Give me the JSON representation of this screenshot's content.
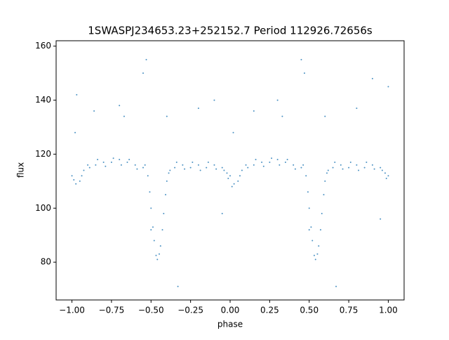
{
  "chart_data": {
    "type": "scatter",
    "title": "1SWASPJ234653.23+252152.7 Period 112926.72656s",
    "x_label": "phase",
    "y_label": "flux",
    "color": "#1f77b4",
    "xlim": [
      -1.1,
      1.1
    ],
    "ylim": [
      66,
      162
    ],
    "xticks": [
      {
        "value": -1,
        "label": "−1.00"
      },
      {
        "value": -0.75,
        "label": "−0.75"
      },
      {
        "value": -0.5,
        "label": "−0.50"
      },
      {
        "value": -0.25,
        "label": "−0.25"
      },
      {
        "value": 0,
        "label": "0.00"
      },
      {
        "value": 0.25,
        "label": "0.25"
      },
      {
        "value": 0.5,
        "label": "0.50"
      },
      {
        "value": 0.75,
        "label": "0.75"
      },
      {
        "value": 1,
        "label": "1.00"
      }
    ],
    "yticks": [
      80,
      100,
      120,
      140,
      160
    ],
    "x": [
      -1.0,
      -0.975,
      -0.95,
      -0.925,
      -0.9,
      -0.85,
      -0.8,
      -0.75,
      -0.7,
      -0.65,
      -0.6,
      -0.55,
      -0.52,
      -0.5,
      -0.48,
      -0.46,
      -0.44,
      -0.42,
      -0.4,
      -0.38,
      -0.35,
      -0.3,
      -0.25,
      -0.2,
      -0.15,
      -0.1,
      -0.05,
      -0.02,
      0.0,
      0.025,
      0.05,
      0.075,
      0.1,
      0.15,
      0.2,
      0.25,
      0.3,
      0.35,
      0.4,
      0.45,
      0.48,
      0.5,
      0.52,
      0.54,
      0.56,
      0.58,
      0.6,
      0.62,
      0.65,
      0.7,
      0.75,
      0.8,
      0.85,
      0.9,
      0.95,
      0.98,
      1.0,
      -0.988,
      -0.938,
      -0.888,
      -0.838,
      -0.788,
      -0.738,
      -0.688,
      -0.638,
      -0.588,
      -0.538,
      -0.508,
      -0.488,
      -0.468,
      -0.448,
      -0.428,
      -0.408,
      -0.388,
      -0.338,
      -0.288,
      -0.238,
      -0.188,
      -0.138,
      -0.088,
      -0.038,
      -0.012,
      0.012,
      0.062,
      0.112,
      0.162,
      0.212,
      0.262,
      0.312,
      0.362,
      0.412,
      0.462,
      0.492,
      0.512,
      0.532,
      0.552,
      0.572,
      0.592,
      0.612,
      0.662,
      0.712,
      0.762,
      0.812,
      0.862,
      0.912,
      0.962,
      0.988,
      -0.98,
      -0.97,
      -0.86,
      -0.7,
      -0.67,
      -0.55,
      -0.53,
      -0.4,
      -0.2,
      -0.1,
      0.02,
      0.15,
      0.3,
      0.33,
      0.45,
      0.47,
      0.6,
      0.8,
      0.9,
      1.0,
      0.5,
      -0.5,
      0.67,
      -0.33,
      -0.05,
      0.95
    ],
    "values": [
      112,
      109,
      110,
      114,
      116,
      116,
      117,
      117,
      118,
      117,
      116,
      115,
      112,
      100,
      88,
      81,
      86,
      98,
      110,
      114,
      115,
      116,
      115,
      116,
      115,
      116,
      115,
      113,
      112,
      109,
      110,
      114,
      116,
      116,
      117,
      117,
      118,
      117,
      116,
      115,
      112,
      100,
      88,
      81,
      86,
      98,
      110,
      114,
      115,
      116,
      115,
      116,
      115,
      116,
      115,
      113,
      112,
      110.5,
      112,
      115,
      118,
      115.5,
      118.5,
      116,
      118,
      114.5,
      116,
      106,
      93,
      82.5,
      83,
      92,
      105,
      113,
      117,
      114.5,
      117,
      114,
      117,
      114.5,
      114,
      111,
      108,
      112,
      115,
      118,
      115.5,
      118.5,
      116,
      118,
      114.5,
      116,
      106,
      93,
      82.5,
      83,
      92,
      105,
      113,
      117,
      114.5,
      117,
      114,
      117,
      114.5,
      114,
      111,
      128,
      142,
      136,
      138,
      134,
      150,
      155,
      134,
      137,
      140,
      128,
      136,
      140,
      134,
      155,
      150,
      134,
      137,
      148,
      145,
      92,
      92,
      71,
      71,
      98,
      96
    ]
  }
}
